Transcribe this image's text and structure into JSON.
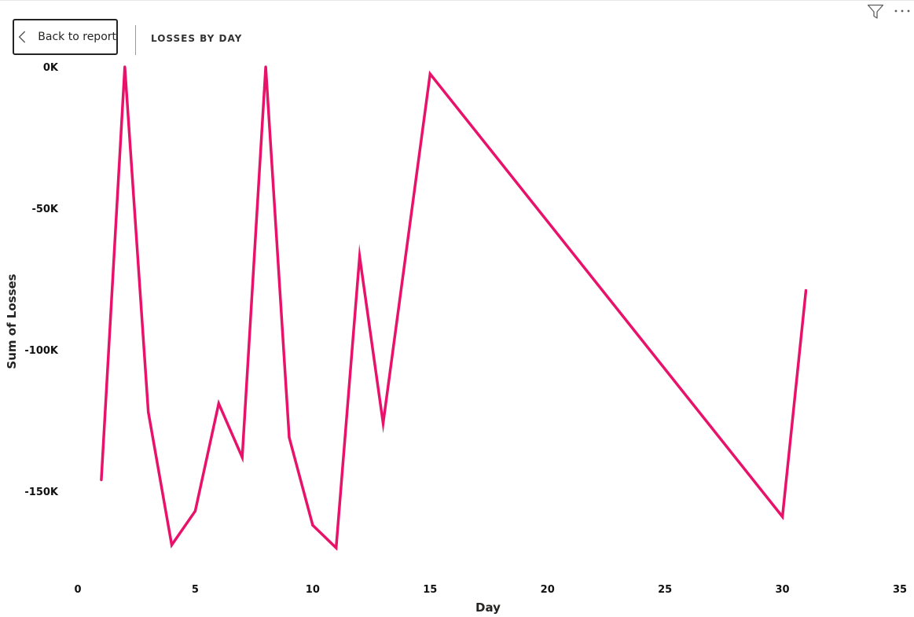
{
  "header": {
    "back_label": "Back to report",
    "page_title": "LOSSES BY DAY"
  },
  "toolbar": {
    "filter_icon": "filter-icon",
    "more_icon": "more-options-icon"
  },
  "chart_data": {
    "type": "line",
    "xlabel": "Day",
    "ylabel": "Sum of Losses",
    "xlim": [
      0,
      35
    ],
    "ylim": [
      -180000,
      0
    ],
    "x_ticks": [
      0,
      5,
      10,
      15,
      20,
      25,
      30,
      35
    ],
    "x_tick_labels": [
      "0",
      "5",
      "10",
      "15",
      "20",
      "25",
      "30",
      "35"
    ],
    "y_ticks": [
      0,
      -50000,
      -100000,
      -150000
    ],
    "y_tick_labels": [
      "0K",
      "-50K",
      "-100K",
      "-150K"
    ],
    "grid": false,
    "series": [
      {
        "color": "#E8126A",
        "x": [
          1,
          2,
          3,
          4,
          5,
          6,
          7,
          8,
          9,
          10,
          11,
          12,
          13,
          15,
          30,
          31
        ],
        "values": [
          -146000,
          0,
          -122000,
          -169000,
          -157000,
          -119000,
          -138000,
          0,
          -131000,
          -162000,
          -170000,
          -67000,
          -126000,
          -2500,
          -159000,
          -79000
        ]
      }
    ]
  }
}
